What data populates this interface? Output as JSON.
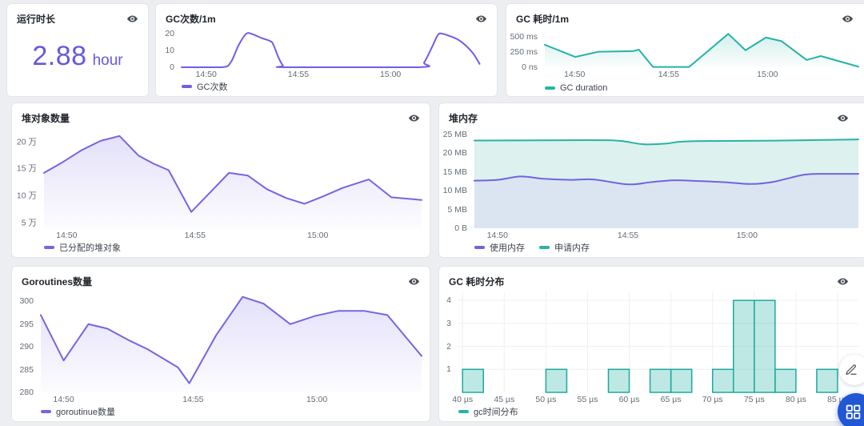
{
  "page": {
    "background": "#eceef1",
    "accent_purple": "#6459dd",
    "accent_teal": "#26b3a7"
  },
  "stat_panel": {
    "title": "运行时长",
    "value": "2.88",
    "unit": "hour",
    "color": "#6459dd"
  },
  "icons": {
    "panel_action": "eye-icon",
    "fab_top": "pencil-icon",
    "fab_bottom": "apps-grid-icon"
  },
  "chart_data": [
    {
      "id": "gc-count",
      "type": "line",
      "title": "GC次数/1m",
      "y_min": 0,
      "y_max": 22.5,
      "gutter": 32,
      "smooth": true,
      "y_ticks": [
        {
          "v": 20,
          "label": "20"
        },
        {
          "v": 10,
          "label": "10"
        },
        {
          "v": 0,
          "label": "0"
        }
      ],
      "x_ticks": [
        {
          "f": 0.08,
          "label": "14:50"
        },
        {
          "f": 0.38,
          "label": "14:55"
        },
        {
          "f": 0.68,
          "label": "15:00"
        }
      ],
      "series": [
        {
          "name": "GC次数",
          "color": "#6f5fe6",
          "fill": "none",
          "points": [
            [
              0,
              0
            ],
            [
              0.13,
              0
            ],
            [
              0.16,
              3
            ],
            [
              0.185,
              13
            ],
            [
              0.21,
              20
            ],
            [
              0.23,
              19.8
            ],
            [
              0.26,
              17.5
            ],
            [
              0.29,
              15.5
            ],
            [
              0.3,
              13
            ],
            [
              0.315,
              6
            ],
            [
              0.33,
              1
            ],
            [
              0.345,
              0
            ],
            [
              0.77,
              0
            ],
            [
              0.79,
              3
            ],
            [
              0.815,
              12
            ],
            [
              0.835,
              19.5
            ],
            [
              0.85,
              20
            ],
            [
              0.875,
              18.5
            ],
            [
              0.9,
              16.5
            ],
            [
              0.925,
              13
            ],
            [
              0.95,
              8
            ],
            [
              0.97,
              2
            ]
          ]
        }
      ],
      "legend": [
        {
          "label": "GC次数",
          "color": "#6f5fe6"
        }
      ]
    },
    {
      "id": "gc-duration",
      "type": "line",
      "title": "GC 耗时/1m",
      "y_min": 0,
      "y_max": 620,
      "gutter": 48,
      "smooth": false,
      "y_ticks": [
        {
          "v": 500,
          "label": "500 ms"
        },
        {
          "v": 250,
          "label": "250 ms"
        },
        {
          "v": 0,
          "label": "0 ns"
        }
      ],
      "x_ticks": [
        {
          "f": 0.095,
          "label": "14:50"
        },
        {
          "f": 0.395,
          "label": "14:55"
        },
        {
          "f": 0.71,
          "label": "15:00"
        }
      ],
      "series": [
        {
          "name": "GC duration",
          "color": "#26b3a7",
          "fill": "grad:#26b3a7",
          "points": [
            [
              0,
              370
            ],
            [
              0.097,
              170
            ],
            [
              0.17,
              255
            ],
            [
              0.28,
              265
            ],
            [
              0.3,
              290
            ],
            [
              0.345,
              5
            ],
            [
              0.46,
              5
            ],
            [
              0.585,
              550
            ],
            [
              0.64,
              280
            ],
            [
              0.705,
              490
            ],
            [
              0.755,
              430
            ],
            [
              0.835,
              120
            ],
            [
              0.88,
              185
            ],
            [
              1,
              10
            ]
          ]
        }
      ],
      "legend": [
        {
          "label": "GC duration",
          "color": "#26b3a7"
        }
      ]
    },
    {
      "id": "heap-objects",
      "type": "line",
      "title": "堆对象数量",
      "y_min": 4,
      "y_max": 22.3,
      "gutter": 40,
      "smooth": false,
      "unit": "万",
      "y_ticks": [
        {
          "v": 20,
          "label": "20 万"
        },
        {
          "v": 15,
          "label": "15 万"
        },
        {
          "v": 10,
          "label": "10 万"
        },
        {
          "v": 5,
          "label": "5 万"
        }
      ],
      "x_ticks": [
        {
          "f": 0.06,
          "label": "14:50"
        },
        {
          "f": 0.4,
          "label": "14:55"
        },
        {
          "f": 0.725,
          "label": "15:00"
        }
      ],
      "series": [
        {
          "name": "已分配的堆对象",
          "color": "#7466e3",
          "fill": "grad:#7466e3",
          "points": [
            [
              0,
              14.2
            ],
            [
              0.05,
              16.2
            ],
            [
              0.1,
              18.4
            ],
            [
              0.15,
              20.1
            ],
            [
              0.2,
              21
            ],
            [
              0.25,
              17.4
            ],
            [
              0.29,
              15.9
            ],
            [
              0.33,
              14.7
            ],
            [
              0.39,
              7
            ],
            [
              0.44,
              10.6
            ],
            [
              0.49,
              14.2
            ],
            [
              0.54,
              13.7
            ],
            [
              0.59,
              11.2
            ],
            [
              0.64,
              9.6
            ],
            [
              0.69,
              8.5
            ],
            [
              0.74,
              9.9
            ],
            [
              0.79,
              11.4
            ],
            [
              0.86,
              13
            ],
            [
              0.92,
              9.7
            ],
            [
              1,
              9.2
            ]
          ]
        }
      ],
      "legend": [
        {
          "label": "已分配的堆对象",
          "color": "#7466e3"
        }
      ]
    },
    {
      "id": "heap-memory",
      "type": "line",
      "title": "堆内存",
      "y_min": 0,
      "y_max": 26.5,
      "gutter": 44,
      "smooth": true,
      "unit": "MB",
      "y_ticks": [
        {
          "v": 25,
          "label": "25 MB"
        },
        {
          "v": 20,
          "label": "20 MB"
        },
        {
          "v": 15,
          "label": "15 MB"
        },
        {
          "v": 10,
          "label": "10 MB"
        },
        {
          "v": 5,
          "label": "5 MB"
        },
        {
          "v": 0,
          "label": "0 B"
        }
      ],
      "x_ticks": [
        {
          "f": 0.06,
          "label": "14:50"
        },
        {
          "f": 0.4,
          "label": "14:55"
        },
        {
          "f": 0.71,
          "label": "15:00"
        }
      ],
      "series": [
        {
          "name": "申请内存",
          "color": "#26b3a7",
          "fill": "#ddf1ee",
          "points": [
            [
              0,
              23.4
            ],
            [
              0.3,
              23.5
            ],
            [
              0.38,
              23.3
            ],
            [
              0.44,
              22.4
            ],
            [
              0.5,
              22.6
            ],
            [
              0.56,
              23.2
            ],
            [
              0.8,
              23.4
            ],
            [
              1,
              23.7
            ]
          ]
        },
        {
          "name": "使用内存",
          "color": "#6f64e0",
          "fill": "#dbe5f2",
          "points": [
            [
              0,
              12.7
            ],
            [
              0.06,
              12.9
            ],
            [
              0.12,
              13.8
            ],
            [
              0.18,
              13.2
            ],
            [
              0.25,
              12.9
            ],
            [
              0.31,
              13
            ],
            [
              0.4,
              11.7
            ],
            [
              0.46,
              12.3
            ],
            [
              0.52,
              12.8
            ],
            [
              0.58,
              12.6
            ],
            [
              0.65,
              12.3
            ],
            [
              0.72,
              11.8
            ],
            [
              0.78,
              12.4
            ],
            [
              0.86,
              14.3
            ],
            [
              0.93,
              14.5
            ],
            [
              1,
              14.5
            ]
          ]
        }
      ],
      "legend": [
        {
          "label": "使用内存",
          "color": "#6f64e0"
        },
        {
          "label": "申请内存",
          "color": "#26b3a7"
        }
      ]
    },
    {
      "id": "goroutines",
      "type": "line",
      "title": "Goroutines数量",
      "y_min": 280,
      "y_max": 302,
      "gutter": 36,
      "smooth": false,
      "y_ticks": [
        {
          "v": 300,
          "label": "300"
        },
        {
          "v": 295,
          "label": "295"
        },
        {
          "v": 290,
          "label": "290"
        },
        {
          "v": 285,
          "label": "285"
        },
        {
          "v": 280,
          "label": "280"
        }
      ],
      "x_ticks": [
        {
          "f": 0.06,
          "label": "14:50"
        },
        {
          "f": 0.4,
          "label": "14:55"
        },
        {
          "f": 0.725,
          "label": "15:00"
        }
      ],
      "series": [
        {
          "name": "goroutinue数量",
          "color": "#7466e3",
          "fill": "grad:#7466e3",
          "points": [
            [
              0,
              297
            ],
            [
              0.06,
              287
            ],
            [
              0.125,
              295
            ],
            [
              0.175,
              294
            ],
            [
              0.23,
              291.5
            ],
            [
              0.28,
              289.5
            ],
            [
              0.32,
              287.5
            ],
            [
              0.36,
              285.5
            ],
            [
              0.39,
              282
            ],
            [
              0.46,
              292.5
            ],
            [
              0.53,
              301
            ],
            [
              0.585,
              299.5
            ],
            [
              0.655,
              295
            ],
            [
              0.72,
              296.8
            ],
            [
              0.78,
              297.9
            ],
            [
              0.85,
              297.9
            ],
            [
              0.91,
              297
            ],
            [
              1,
              288
            ]
          ]
        }
      ],
      "legend": [
        {
          "label": "goroutinue数量",
          "color": "#7466e3"
        }
      ]
    },
    {
      "id": "gc-dist",
      "type": "histogram",
      "title": "GC 耗时分布",
      "y_min": 0,
      "y_max": 4.35,
      "gutter": 24,
      "grid": true,
      "x_min": 39.5,
      "x_max": 87.5,
      "bar_fill": "rgba(38,179,167,0.30)",
      "bar_stroke": "#1ea99d",
      "y_ticks": [
        {
          "v": 4,
          "label": "4"
        },
        {
          "v": 3,
          "label": "3"
        },
        {
          "v": 2,
          "label": "2"
        },
        {
          "v": 1,
          "label": "1"
        }
      ],
      "x_ticks": [
        {
          "v": 40,
          "label": "40 µs"
        },
        {
          "v": 45,
          "label": "45 µs"
        },
        {
          "v": 50,
          "label": "50 µs"
        },
        {
          "v": 55,
          "label": "55 µs"
        },
        {
          "v": 60,
          "label": "60 µs"
        },
        {
          "v": 65,
          "label": "65 µs"
        },
        {
          "v": 70,
          "label": "70 µs"
        },
        {
          "v": 75,
          "label": "75 µs"
        },
        {
          "v": 80,
          "label": "80 µs"
        },
        {
          "v": 85,
          "label": "85 µs"
        }
      ],
      "bars": [
        {
          "from": 40,
          "to": 42.5,
          "count": 1
        },
        {
          "from": 50,
          "to": 52.5,
          "count": 1
        },
        {
          "from": 57.5,
          "to": 60,
          "count": 1
        },
        {
          "from": 62.5,
          "to": 65,
          "count": 1
        },
        {
          "from": 65,
          "to": 67.5,
          "count": 1
        },
        {
          "from": 70,
          "to": 72.5,
          "count": 1
        },
        {
          "from": 72.5,
          "to": 75,
          "count": 4
        },
        {
          "from": 75,
          "to": 77.5,
          "count": 4
        },
        {
          "from": 77.5,
          "to": 80,
          "count": 1
        },
        {
          "from": 82.5,
          "to": 85,
          "count": 1
        }
      ],
      "legend": [
        {
          "label": "gc时间分布",
          "color": "#26b3a7"
        }
      ]
    }
  ]
}
